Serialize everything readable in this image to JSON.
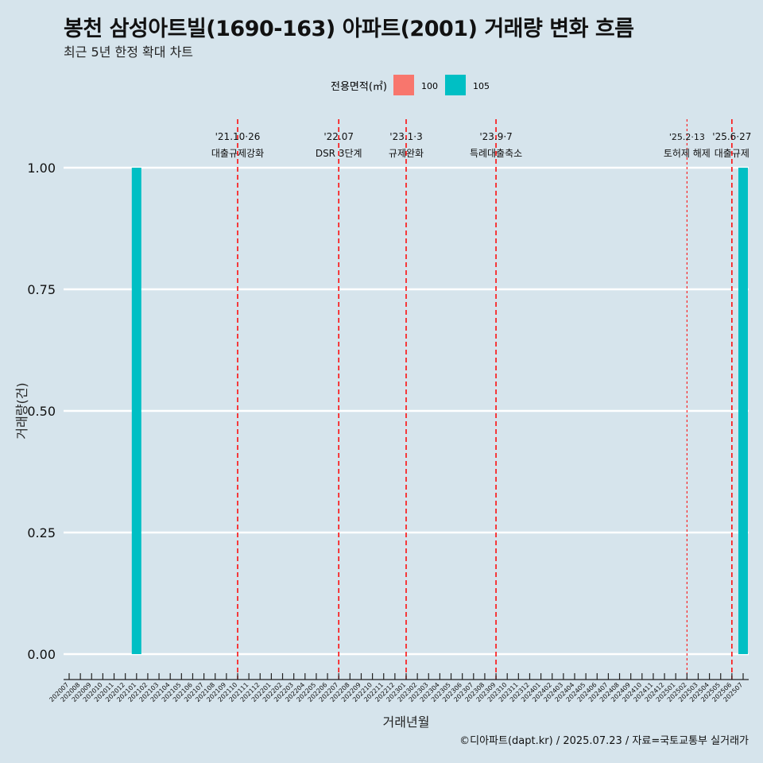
{
  "title": "봉천 삼성아트빌(1690-163) 아파트(2001) 거래량 변화 흐름",
  "subtitle": "최근 5년 한정 확대 차트",
  "caption": "©디아파트(dapt.kr) / 2025.07.23 / 자료=국토교통부 실거래가",
  "legend": {
    "title": "전용면적(㎡)",
    "items": [
      {
        "label": "100",
        "color": "#f8766d"
      },
      {
        "label": "105",
        "color": "#00bfc4"
      }
    ]
  },
  "chart_data": {
    "type": "bar",
    "xlabel": "거래년월",
    "ylabel": "거래량(건)",
    "ylim": [
      0,
      1
    ],
    "y_ticks": [
      "0.00",
      "0.25",
      "0.50",
      "0.75",
      "1.00"
    ],
    "categories": [
      "202007",
      "202008",
      "202009",
      "202010",
      "202011",
      "202012",
      "202101",
      "202102",
      "202103",
      "202104",
      "202105",
      "202106",
      "202107",
      "202108",
      "202109",
      "202110",
      "202111",
      "202112",
      "202201",
      "202202",
      "202203",
      "202204",
      "202205",
      "202206",
      "202207",
      "202208",
      "202209",
      "202210",
      "202211",
      "202212",
      "202301",
      "202302",
      "202303",
      "202304",
      "202305",
      "202306",
      "202307",
      "202308",
      "202309",
      "202310",
      "202311",
      "202312",
      "202401",
      "202402",
      "202403",
      "202404",
      "202405",
      "202406",
      "202407",
      "202408",
      "202409",
      "202410",
      "202411",
      "202412",
      "202501",
      "202502",
      "202503",
      "202504",
      "202505",
      "202506",
      "202507"
    ],
    "series": [
      {
        "name": "100",
        "color": "#f8766d",
        "values": [
          0,
          0,
          0,
          0,
          0,
          0,
          0,
          0,
          0,
          0,
          0,
          0,
          0,
          0,
          0,
          0,
          0,
          0,
          0,
          0,
          0,
          0,
          0,
          0,
          0,
          0,
          0,
          0,
          0,
          0,
          0,
          0,
          0,
          0,
          0,
          0,
          0,
          0,
          0,
          0,
          0,
          0,
          0,
          0,
          0,
          0,
          0,
          0,
          0,
          0,
          0,
          0,
          0,
          0,
          0,
          0,
          0,
          0,
          0,
          0,
          0
        ]
      },
      {
        "name": "105",
        "color": "#00bfc4",
        "values": [
          0,
          0,
          0,
          0,
          0,
          0,
          1,
          0,
          0,
          0,
          0,
          0,
          0,
          0,
          0,
          0,
          0,
          0,
          0,
          0,
          0,
          0,
          0,
          0,
          0,
          0,
          0,
          0,
          0,
          0,
          0,
          0,
          0,
          0,
          0,
          0,
          0,
          0,
          0,
          0,
          0,
          0,
          0,
          0,
          0,
          0,
          0,
          0,
          0,
          0,
          0,
          0,
          0,
          0,
          0,
          0,
          0,
          0,
          0,
          0,
          1
        ]
      }
    ],
    "annotations": [
      {
        "x": "202110",
        "date": "'21.10·26",
        "text": "대출규제강화",
        "style": "dashed"
      },
      {
        "x": "202207",
        "date": "'22.07",
        "text": "DSR 3단계",
        "style": "dashed"
      },
      {
        "x": "202301",
        "date": "'23.1·3",
        "text": "규제완화",
        "style": "dashed"
      },
      {
        "x": "202309",
        "date": "'23.9·7",
        "text": "특례대출축소",
        "style": "dashed"
      },
      {
        "x": "202502",
        "date": "'25.2·13",
        "text": "토허제 해제",
        "style": "dotted"
      },
      {
        "x": "202506",
        "date": "'25.6·27",
        "text": "대출규제",
        "style": "dashed"
      }
    ],
    "annotation_color": "#ff0000",
    "grid": true,
    "legend_position": "top"
  }
}
